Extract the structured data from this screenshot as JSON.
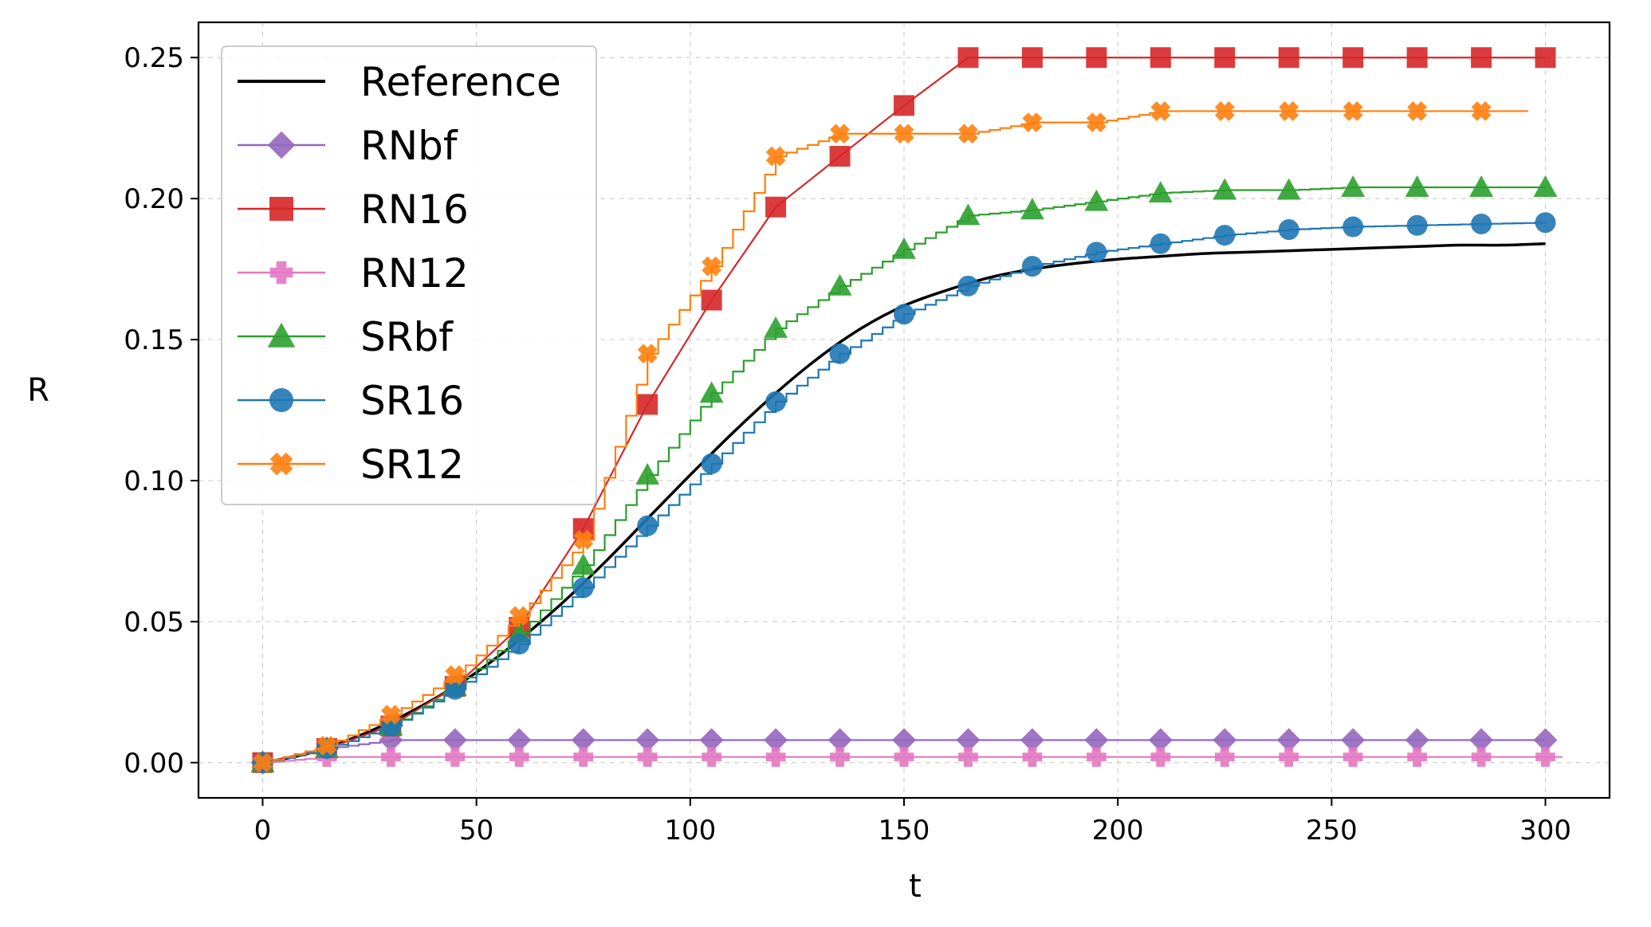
{
  "chart_data": {
    "type": "line",
    "title": "",
    "xlabel": "t",
    "ylabel": "R",
    "xlim": [
      -15,
      315
    ],
    "ylim": [
      -0.0125,
      0.2625
    ],
    "xticks": [
      0,
      50,
      100,
      150,
      200,
      250,
      300
    ],
    "xtick_labels": [
      "0",
      "50",
      "100",
      "150",
      "200",
      "250",
      "300"
    ],
    "yticks": [
      0,
      0.05,
      0.1,
      0.15,
      0.2,
      0.25
    ],
    "ytick_labels": [
      "0.00",
      "0.05",
      "0.10",
      "0.15",
      "0.20",
      "0.25"
    ],
    "grid": true,
    "legend_position": "top-left",
    "series": [
      {
        "name": "Reference",
        "color": "#000000",
        "marker": "none",
        "style": "smooth",
        "x": [
          0,
          10,
          20,
          30,
          40,
          50,
          60,
          70,
          80,
          90,
          100,
          110,
          120,
          130,
          140,
          150,
          160,
          170,
          180,
          190,
          200,
          210,
          220,
          230,
          240,
          250,
          260,
          270,
          280,
          290,
          300
        ],
        "values": [
          0.0,
          0.003,
          0.008,
          0.0145,
          0.0225,
          0.032,
          0.0435,
          0.0565,
          0.071,
          0.0865,
          0.102,
          0.117,
          0.131,
          0.1435,
          0.154,
          0.162,
          0.1675,
          0.172,
          0.175,
          0.177,
          0.1785,
          0.1795,
          0.1805,
          0.181,
          0.1815,
          0.182,
          0.1825,
          0.183,
          0.1835,
          0.1835,
          0.184
        ]
      },
      {
        "name": "RNbf",
        "color": "#9467bd",
        "marker": "diamond",
        "style": "step",
        "x": [
          0,
          15,
          30,
          45,
          60,
          75,
          90,
          105,
          120,
          135,
          150,
          165,
          180,
          195,
          210,
          225,
          240,
          255,
          270,
          285,
          300
        ],
        "values": [
          0.0,
          0.005,
          0.008,
          0.008,
          0.008,
          0.008,
          0.008,
          0.008,
          0.008,
          0.008,
          0.008,
          0.008,
          0.008,
          0.008,
          0.008,
          0.008,
          0.008,
          0.008,
          0.008,
          0.008,
          0.008
        ]
      },
      {
        "name": "RN16",
        "color": "#d62728",
        "marker": "square",
        "style": "line",
        "x": [
          0,
          15,
          30,
          45,
          60,
          75,
          90,
          105,
          120,
          135,
          150,
          165,
          180,
          195,
          210,
          225,
          240,
          255,
          270,
          285,
          300
        ],
        "values": [
          0.0,
          0.005,
          0.013,
          0.027,
          0.048,
          0.083,
          0.127,
          0.164,
          0.197,
          0.215,
          0.233,
          0.25,
          0.25,
          0.25,
          0.25,
          0.25,
          0.25,
          0.25,
          0.25,
          0.25,
          0.25
        ]
      },
      {
        "name": "RN12",
        "color": "#e377c2",
        "marker": "plus",
        "style": "step",
        "x": [
          0,
          15,
          30,
          45,
          60,
          75,
          90,
          105,
          120,
          135,
          150,
          165,
          180,
          195,
          210,
          225,
          240,
          255,
          270,
          285,
          300
        ],
        "values": [
          0.0,
          0.002,
          0.002,
          0.002,
          0.002,
          0.002,
          0.002,
          0.002,
          0.002,
          0.002,
          0.002,
          0.002,
          0.002,
          0.002,
          0.002,
          0.002,
          0.002,
          0.002,
          0.002,
          0.002,
          0.002
        ]
      },
      {
        "name": "SRbf",
        "color": "#2ca02c",
        "marker": "triangle",
        "style": "step",
        "x": [
          0,
          15,
          30,
          45,
          60,
          75,
          90,
          105,
          120,
          135,
          150,
          165,
          180,
          195,
          210,
          225,
          240,
          255,
          270,
          285,
          300
        ],
        "values": [
          0.0,
          0.005,
          0.013,
          0.027,
          0.046,
          0.07,
          0.102,
          0.131,
          0.154,
          0.169,
          0.182,
          0.194,
          0.196,
          0.199,
          0.202,
          0.203,
          0.203,
          0.204,
          0.204,
          0.204,
          0.204
        ]
      },
      {
        "name": "SR16",
        "color": "#1f77b4",
        "marker": "circle",
        "style": "step",
        "x": [
          0,
          15,
          30,
          45,
          60,
          75,
          90,
          105,
          120,
          135,
          150,
          165,
          180,
          195,
          210,
          225,
          240,
          255,
          270,
          285,
          300
        ],
        "values": [
          0.0,
          0.005,
          0.013,
          0.026,
          0.042,
          0.062,
          0.084,
          0.106,
          0.128,
          0.145,
          0.159,
          0.169,
          0.176,
          0.181,
          0.184,
          0.187,
          0.189,
          0.19,
          0.1905,
          0.191,
          0.1915
        ]
      },
      {
        "name": "SR12",
        "color": "#ff7f0e",
        "marker": "x",
        "style": "step",
        "x": [
          0,
          15,
          30,
          45,
          60,
          75,
          90,
          105,
          120,
          135,
          150,
          165,
          180,
          195,
          210,
          225,
          240,
          255,
          270,
          285
        ],
        "values": [
          0.0,
          0.006,
          0.017,
          0.031,
          0.052,
          0.079,
          0.145,
          0.176,
          0.215,
          0.223,
          0.223,
          0.223,
          0.227,
          0.227,
          0.231,
          0.231,
          0.231,
          0.231,
          0.231,
          0.231
        ]
      }
    ]
  }
}
